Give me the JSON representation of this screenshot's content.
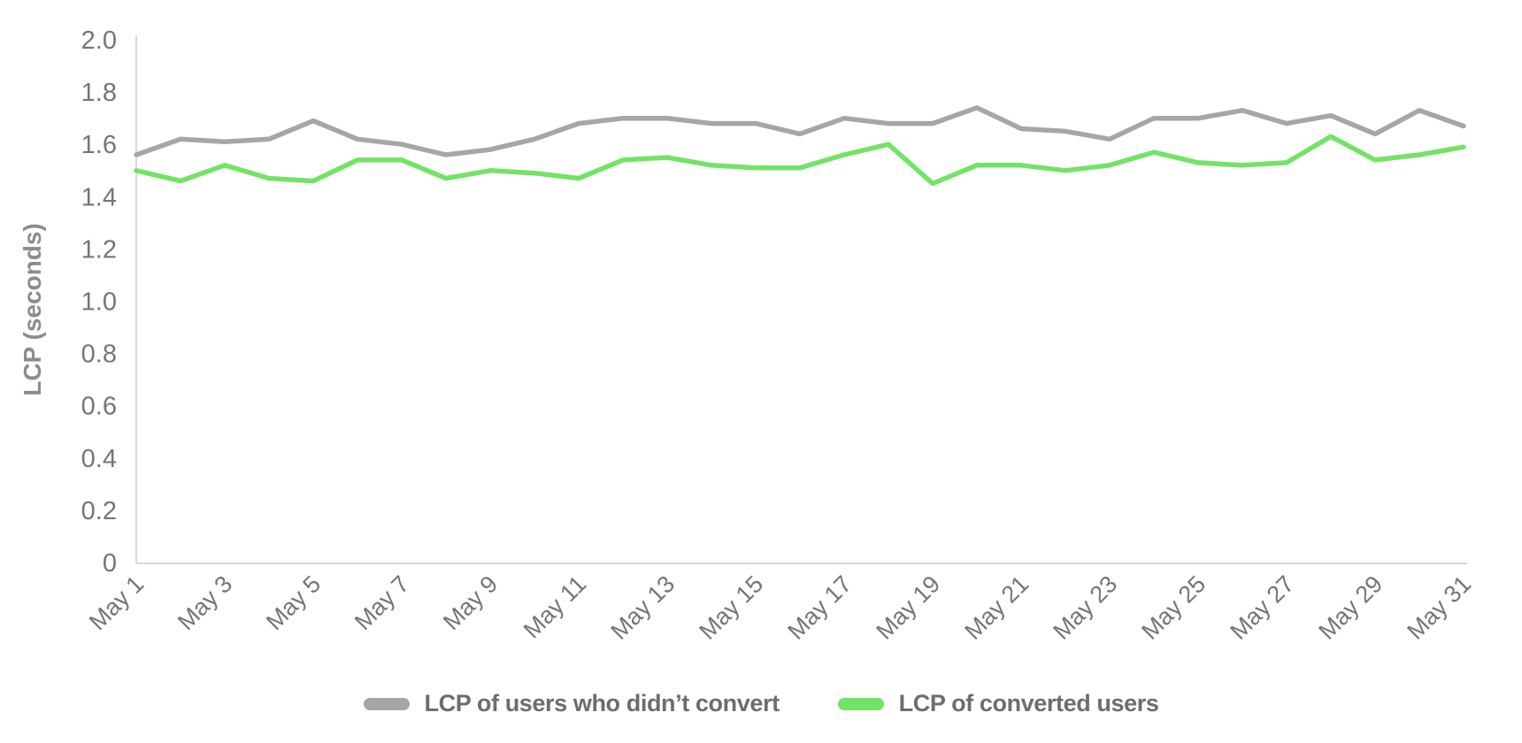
{
  "chart_data": {
    "type": "line",
    "title": "",
    "xlabel": "",
    "ylabel": "LCP (seconds)",
    "ylim": [
      0,
      2.0
    ],
    "y_ticks": [
      2.0,
      1.8,
      1.6,
      1.4,
      1.2,
      1.0,
      0.8,
      0.6,
      0.4,
      0.2,
      0
    ],
    "y_tick_labels": [
      "2.0",
      "1.8",
      "1.6",
      "1.4",
      "1.2",
      "1.0",
      "0.8",
      "0.6",
      "0.4",
      "0.2",
      "0"
    ],
    "x": [
      "May 1",
      "May 2",
      "May 3",
      "May 4",
      "May 5",
      "May 6",
      "May 7",
      "May 8",
      "May 9",
      "May 10",
      "May 11",
      "May 12",
      "May 13",
      "May 14",
      "May 15",
      "May 16",
      "May 17",
      "May 18",
      "May 19",
      "May 20",
      "May 21",
      "May 22",
      "May 23",
      "May 24",
      "May 25",
      "May 26",
      "May 27",
      "May 28",
      "May 29",
      "May 30",
      "May 31"
    ],
    "x_tick_labels": [
      "May 1",
      "May 3",
      "May 5",
      "May 7",
      "May 9",
      "May 11",
      "May 13",
      "May 15",
      "May 17",
      "May 19",
      "May 21",
      "May 23",
      "May 25",
      "May 27",
      "May 29",
      "May 31"
    ],
    "grid": false,
    "legend_position": "bottom",
    "series": [
      {
        "name": "LCP of users who didn’t convert",
        "color": "#a6a6a6",
        "values": [
          1.56,
          1.62,
          1.61,
          1.62,
          1.69,
          1.62,
          1.6,
          1.56,
          1.58,
          1.62,
          1.68,
          1.7,
          1.7,
          1.68,
          1.68,
          1.64,
          1.7,
          1.68,
          1.68,
          1.74,
          1.66,
          1.65,
          1.62,
          1.7,
          1.7,
          1.73,
          1.68,
          1.71,
          1.64,
          1.73,
          1.67
        ]
      },
      {
        "name": "LCP of converted users",
        "color": "#73e366",
        "values": [
          1.5,
          1.46,
          1.52,
          1.47,
          1.46,
          1.54,
          1.54,
          1.47,
          1.5,
          1.49,
          1.47,
          1.54,
          1.55,
          1.52,
          1.51,
          1.51,
          1.56,
          1.6,
          1.45,
          1.52,
          1.52,
          1.5,
          1.52,
          1.57,
          1.53,
          1.52,
          1.53,
          1.63,
          1.54,
          1.56,
          1.59
        ]
      }
    ]
  },
  "colors": {
    "background": "#ffffff",
    "axis_line": "#d9d9d9",
    "tick_text": "#757575",
    "axis_title_text": "#8c8c8c",
    "legend_text": "#6d6d6d"
  }
}
